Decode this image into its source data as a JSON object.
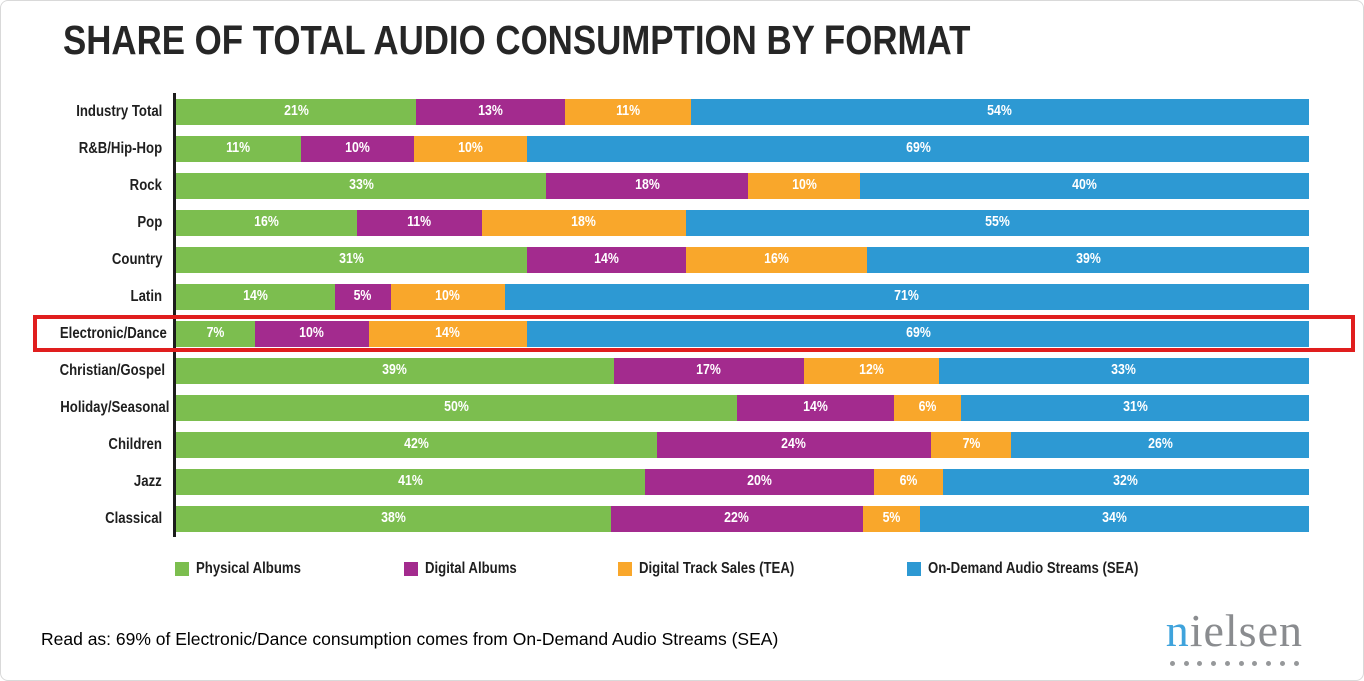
{
  "title": "SHARE OF TOTAL AUDIO CONSUMPTION BY FORMAT",
  "chart_data": {
    "type": "bar",
    "variant": "stacked-horizontal-100pct",
    "orientation": "horizontal",
    "value_suffix": "%",
    "legend_position": "bottom",
    "categories": [
      "Industry Total",
      "R&B/Hip-Hop",
      "Rock",
      "Pop",
      "Country",
      "Latin",
      "Electronic/Dance",
      "Christian/Gospel",
      "Holiday/Seasonal",
      "Children",
      "Jazz",
      "Classical"
    ],
    "series": [
      {
        "name": "Physical Albums",
        "color": "#7cbe4f",
        "values": [
          21,
          11,
          33,
          16,
          31,
          14,
          7,
          39,
          50,
          42,
          41,
          38
        ]
      },
      {
        "name": "Digital Albums",
        "color": "#a32b8e",
        "values": [
          13,
          10,
          18,
          11,
          14,
          5,
          10,
          17,
          14,
          24,
          20,
          22
        ]
      },
      {
        "name": "Digital Track Sales (TEA)",
        "color": "#f9a72b",
        "values": [
          11,
          10,
          10,
          18,
          16,
          10,
          14,
          12,
          6,
          7,
          6,
          5
        ]
      },
      {
        "name": "On-Demand Audio Streams (SEA)",
        "color": "#2d99d3",
        "values": [
          54,
          69,
          40,
          55,
          39,
          71,
          69,
          33,
          31,
          26,
          32,
          34
        ]
      }
    ],
    "highlighted_category": "Electronic/Dance",
    "highlight_color": "#e01e1e",
    "axis_line_color": "#1c1c1c"
  },
  "footnote": "Read as: 69% of Electronic/Dance consumption comes from On-Demand Audio Streams (SEA)",
  "logo": {
    "text": "nielsen",
    "accent_letter_color": "#3fa3dc",
    "text_color": "#8a8c8f",
    "dot_color": "#96989a",
    "dot_count": 10
  }
}
